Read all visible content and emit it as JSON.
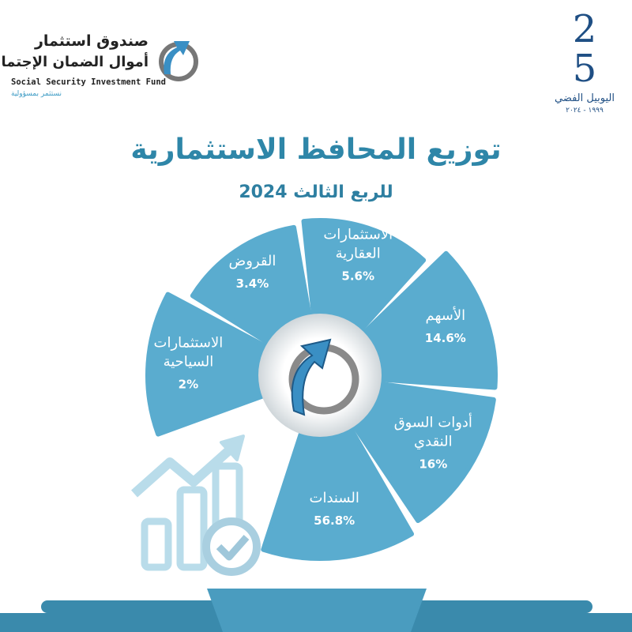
{
  "logo_left": {
    "arabic_line1": "صندوق استثمار",
    "arabic_line2": "أموال الضمان الإجتماعي",
    "english": "Social Security Investment Fund",
    "tagline": "نستثمر بمسؤولية"
  },
  "logo_right": {
    "numeral": "25",
    "caption": "اليوبيل الفضي",
    "years": "١٩٩٩ - ٢٠٢٤"
  },
  "title": "توزيع المحافظ الاستثمارية",
  "subtitle": "للربع الثالث 2024",
  "colors": {
    "segment": "#5aaccf",
    "title": "#2e86a8",
    "band": "#3a8aac",
    "icon": "#b9dcea"
  },
  "chart_data": {
    "type": "pie",
    "title": "توزيع المحافظ الاستثمارية",
    "subtitle": "للربع الثالث 2024",
    "categories": [
      "الاستثمارات السياحية",
      "القروض",
      "الاستثمارات العقارية",
      "الأسهم",
      "أدوات السوق النقدي",
      "السندات"
    ],
    "values": [
      2,
      3.4,
      5.6,
      14.6,
      16,
      56.8
    ],
    "labels": [
      [
        "الاستثمارات",
        "السياحية"
      ],
      [
        "القروض"
      ],
      [
        "الاستثمارات",
        "العقارية"
      ],
      [
        "الأسهم"
      ],
      [
        "أدوات السوق",
        "النقدي"
      ],
      [
        "السندات"
      ]
    ],
    "value_labels": [
      "2%",
      "3.4%",
      "5.6%",
      "14.6%",
      "16%",
      "56.8%"
    ],
    "unit": "%"
  }
}
